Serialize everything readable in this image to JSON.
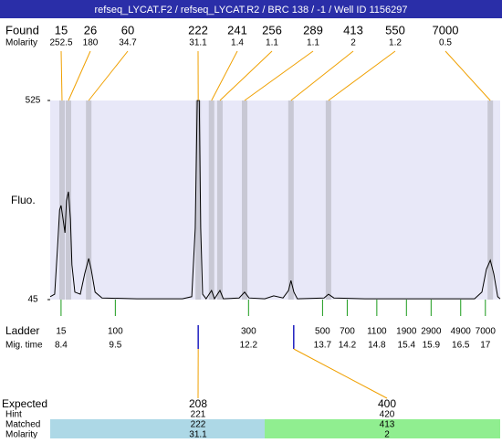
{
  "header": {
    "title": "refseq_LYCAT.F2 / refseq_LYCAT.R2 / BRC 138 / -1 / Well ID 1156297"
  },
  "found": {
    "label": "Found",
    "molarity_label": "Molarity",
    "sizes": [
      15,
      26,
      60,
      222,
      241,
      256,
      289,
      413,
      550,
      7000
    ],
    "molarity": [
      252.5,
      180,
      34.7,
      31.1,
      1.4,
      1.1,
      1.1,
      2,
      1.2,
      0.5
    ],
    "mig_times": [
      8.42,
      8.55,
      8.96,
      11.18,
      11.45,
      11.62,
      12.12,
      13.06,
      13.82,
      17.1
    ]
  },
  "chart_data": {
    "type": "line",
    "ylabel": "Fluo.",
    "ylim": [
      45,
      525
    ],
    "yticks": [
      45,
      525
    ],
    "xlim": [
      8.18,
      17.3
    ],
    "color": "#000000",
    "x": [
      8.18,
      8.27,
      8.33,
      8.37,
      8.4,
      8.44,
      8.48,
      8.51,
      8.55,
      8.59,
      8.62,
      8.68,
      8.79,
      8.88,
      8.96,
      9.01,
      9.09,
      9.23,
      9.94,
      10.86,
      11.05,
      11.12,
      11.16,
      11.2,
      11.23,
      11.27,
      11.34,
      11.45,
      11.51,
      11.62,
      11.69,
      12.01,
      12.12,
      12.21,
      12.53,
      12.71,
      12.9,
      13.01,
      13.06,
      13.12,
      13.19,
      13.73,
      13.82,
      13.93,
      14.56,
      16.78,
      16.93,
      17.02,
      17.1,
      17.17,
      17.25,
      17.3
    ],
    "values": [
      52,
      58,
      173,
      261,
      272,
      239,
      206,
      283,
      305,
      239,
      129,
      63,
      58,
      107,
      144,
      118,
      63,
      49,
      47,
      47,
      52,
      217,
      525,
      525,
      217,
      58,
      47,
      67,
      47,
      67,
      47,
      49,
      63,
      49,
      47,
      54,
      49,
      67,
      91,
      63,
      47,
      49,
      58,
      49,
      47,
      47,
      63,
      118,
      140,
      107,
      52,
      47
    ]
  },
  "ladder": {
    "label": "Ladder",
    "mig_label": "Mig. time",
    "sizes": [
      15,
      100,
      300,
      500,
      700,
      1100,
      1900,
      2900,
      4900,
      7000
    ],
    "mig_times": [
      8.4,
      9.5,
      12.2,
      13.7,
      14.2,
      14.8,
      15.4,
      15.9,
      16.5,
      17
    ]
  },
  "expected": {
    "labels": [
      "Expected",
      "Hint",
      "Matched",
      "Molarity"
    ],
    "columns": [
      [
        208,
        221,
        222,
        31.1
      ],
      [
        400,
        420,
        413,
        2
      ]
    ]
  }
}
